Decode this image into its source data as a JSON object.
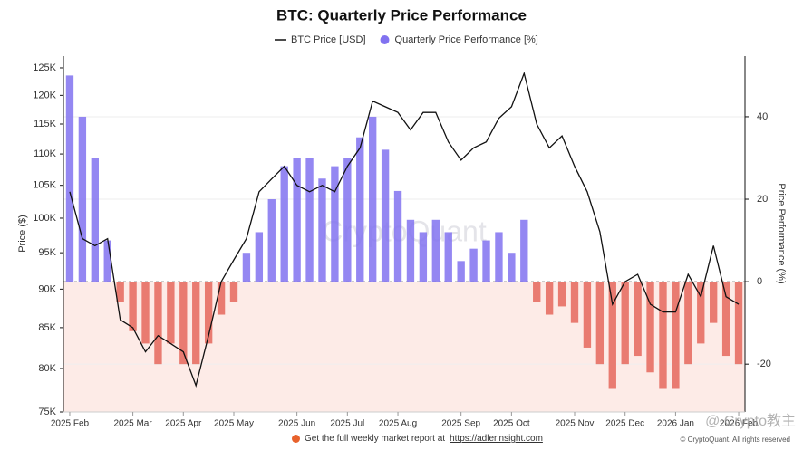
{
  "chart_data": {
    "type": "combo",
    "title": "BTC: Quarterly Price Performance",
    "y_label": "Price ($)",
    "y2_label": "Price Performance (%)",
    "watermark": "CryptoQuant",
    "overlay_watermark": "@ Crypto教主",
    "footer_text": "Get the full weekly market report at",
    "footer_link": "https://adlerinsight.com",
    "copyright": "© CryptoQuant. All rights reserved",
    "log_scale": true,
    "grid": true,
    "categories": [
      "2025 Feb",
      null,
      null,
      null,
      null,
      "2025 Mar",
      null,
      null,
      null,
      "2025 Apr",
      null,
      null,
      null,
      "2025 May",
      null,
      null,
      null,
      null,
      "2025 Jun",
      null,
      null,
      null,
      "2025 Jul",
      null,
      null,
      null,
      "2025 Aug",
      null,
      null,
      null,
      null,
      "2025 Sep",
      null,
      null,
      null,
      "2025 Oct",
      null,
      null,
      null,
      null,
      "2025 Nov",
      null,
      null,
      null,
      "2025 Dec",
      null,
      null,
      null,
      "2026 Jan",
      null,
      null,
      null,
      null,
      "2026 Feb"
    ],
    "series": [
      {
        "name": "BTC Price [USD]",
        "type": "line",
        "color": "#111111",
        "values": [
          104000,
          97000,
          96000,
          97000,
          86000,
          85000,
          82000,
          84000,
          83000,
          82000,
          78000,
          84000,
          91000,
          94000,
          97000,
          104000,
          106000,
          108000,
          105000,
          104000,
          105000,
          104000,
          108000,
          111000,
          119000,
          118000,
          117000,
          114000,
          117000,
          117000,
          112000,
          109000,
          111000,
          112000,
          116000,
          118000,
          124000,
          115000,
          111000,
          113000,
          108000,
          104000,
          98000,
          88000,
          91000,
          92000,
          88000,
          87000,
          87000,
          92000,
          89000,
          96000,
          89000,
          88000
        ]
      },
      {
        "name": "Quarterly Price Performance [%]",
        "type": "bar",
        "axis": "y2",
        "color": "#8172f0",
        "negative_color": "#e5675c",
        "values": [
          50,
          40,
          30,
          10,
          -5,
          -12,
          -15,
          -20,
          -15,
          -20,
          -20,
          -15,
          -8,
          -5,
          7,
          12,
          20,
          28,
          30,
          30,
          25,
          28,
          30,
          35,
          40,
          32,
          22,
          15,
          12,
          15,
          12,
          5,
          8,
          10,
          12,
          7,
          15,
          -5,
          -8,
          -6,
          -10,
          -16,
          -20,
          -26,
          -20,
          -18,
          -22,
          -26,
          -26,
          -20,
          -15,
          -10,
          -18,
          -20
        ]
      }
    ],
    "ylim": [
      75000,
      127200
    ],
    "yticks": [
      {
        "value": 75000,
        "label": "75K"
      },
      {
        "value": 80000,
        "label": "80K"
      },
      {
        "value": 85000,
        "label": "85K"
      },
      {
        "value": 90000,
        "label": "90K"
      },
      {
        "value": 95000,
        "label": "95K"
      },
      {
        "value": 100000,
        "label": "100K"
      },
      {
        "value": 105000,
        "label": "105K"
      },
      {
        "value": 110000,
        "label": "110K"
      },
      {
        "value": 115000,
        "label": "115K"
      },
      {
        "value": 120000,
        "label": "120K"
      },
      {
        "value": 125000,
        "label": "125K"
      }
    ],
    "y2lim": [
      -31.6,
      54.7
    ],
    "y2ticks": [
      -20,
      0,
      20,
      40
    ]
  }
}
